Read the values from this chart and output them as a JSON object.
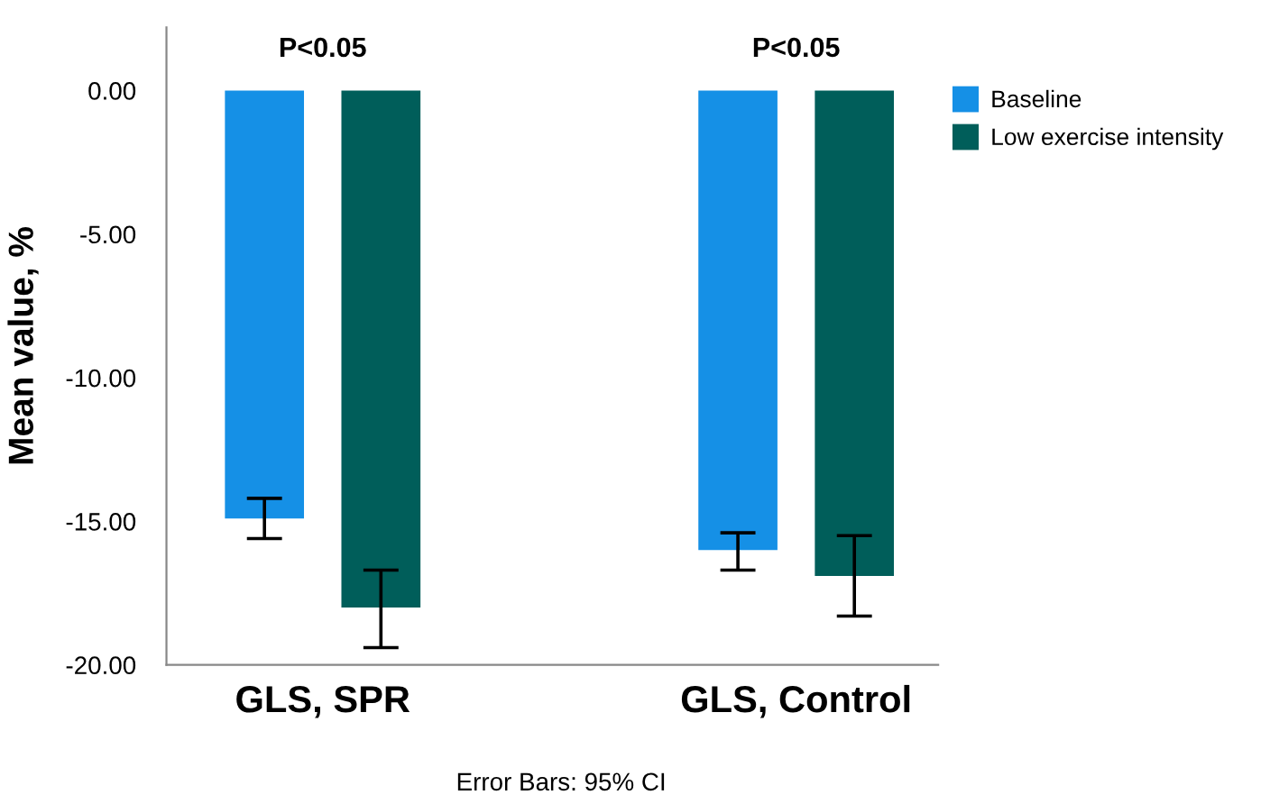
{
  "chart_data": {
    "type": "bar",
    "ylabel": "Mean value, %",
    "categories": [
      "GLS, SPR",
      "GLS, Control"
    ],
    "series": [
      {
        "name": "Baseline",
        "color": "#1590e6",
        "values": [
          -14.9,
          -16.0
        ],
        "errors": [
          [
            -15.6,
            -14.2
          ],
          [
            -16.7,
            -15.4
          ]
        ]
      },
      {
        "name": "Low exercise intensity",
        "color": "#005e5a",
        "values": [
          -18.0,
          -16.9
        ],
        "errors": [
          [
            -19.4,
            -16.7
          ],
          [
            -18.3,
            -15.5
          ]
        ]
      }
    ],
    "ylim": [
      -20,
      2.2
    ],
    "yticks": [
      {
        "value": -20,
        "label": "-20.00"
      },
      {
        "value": -15,
        "label": "-15.00"
      },
      {
        "value": -10,
        "label": "-10.00"
      },
      {
        "value": -5,
        "label": "-5.00"
      },
      {
        "value": 0,
        "label": "0.00"
      }
    ],
    "grid": false,
    "legend": "right",
    "annotations": [
      "P<0.05",
      "P<0.05",
      "Error Bars: 95% CI"
    ]
  }
}
